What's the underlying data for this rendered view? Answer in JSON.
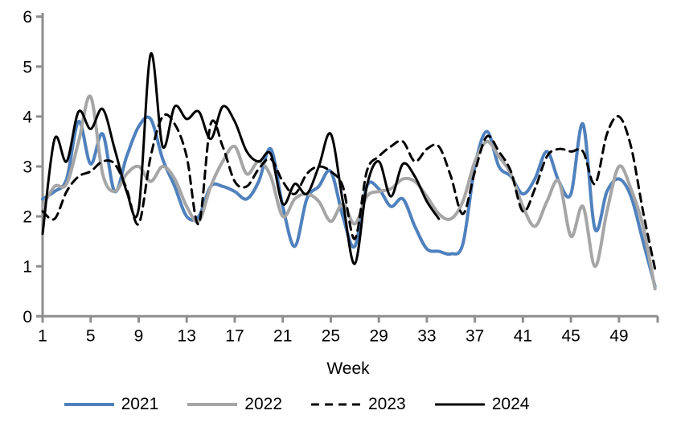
{
  "axis_color": "#8e8e8e",
  "text_color": "#000000",
  "background_color": "#ffffff",
  "chart_data": {
    "type": "line",
    "title": "",
    "xlabel": "Week",
    "ylabel": "",
    "xlim": [
      1,
      52
    ],
    "ylim": [
      0,
      6
    ],
    "grid": false,
    "legend_position": "bottom",
    "x_ticks": [
      1,
      5,
      9,
      13,
      17,
      21,
      25,
      29,
      33,
      37,
      41,
      45,
      49
    ],
    "y_ticks": [
      0,
      1,
      2,
      3,
      4,
      5,
      6
    ],
    "x_start_week": 1,
    "series": [
      {
        "name": "2021",
        "color": "#4f81bd",
        "style": "solid",
        "width": 4,
        "values": [
          2.35,
          2.5,
          2.75,
          3.9,
          3.05,
          3.65,
          2.5,
          3.2,
          3.8,
          3.95,
          3.15,
          2.6,
          2.0,
          2.0,
          2.6,
          2.6,
          2.5,
          2.35,
          2.7,
          3.35,
          2.2,
          1.4,
          2.35,
          2.6,
          2.9,
          2.0,
          1.4,
          2.6,
          2.55,
          2.2,
          2.35,
          1.8,
          1.35,
          1.3,
          1.25,
          1.45,
          3.0,
          3.7,
          3.0,
          2.8,
          2.45,
          2.75,
          3.3,
          2.7,
          2.45,
          3.85,
          1.75,
          2.5,
          2.75,
          2.4,
          1.5,
          0.6
        ]
      },
      {
        "name": "2022",
        "color": "#a6a6a6",
        "style": "solid",
        "width": 4,
        "values": [
          2.2,
          2.6,
          2.65,
          3.5,
          4.4,
          2.85,
          2.5,
          2.85,
          3.0,
          2.7,
          3.0,
          2.75,
          2.2,
          1.9,
          2.6,
          3.1,
          3.4,
          2.85,
          3.1,
          2.8,
          2.0,
          2.35,
          2.45,
          2.3,
          1.9,
          2.25,
          1.85,
          2.4,
          2.5,
          2.55,
          2.75,
          2.7,
          2.4,
          2.05,
          1.95,
          2.3,
          3.1,
          3.5,
          3.2,
          2.85,
          2.2,
          1.8,
          2.3,
          2.7,
          1.6,
          2.2,
          1.0,
          2.1,
          3.0,
          2.55,
          1.8,
          0.55
        ]
      },
      {
        "name": "2023",
        "color": "#000000",
        "style": "dashed",
        "width": 3,
        "values": [
          2.1,
          1.95,
          2.5,
          2.8,
          2.9,
          3.1,
          3.05,
          2.55,
          1.85,
          3.2,
          4.0,
          3.85,
          3.2,
          1.85,
          3.85,
          3.4,
          2.7,
          2.6,
          2.95,
          3.15,
          2.7,
          2.45,
          2.85,
          3.0,
          2.9,
          2.6,
          1.55,
          2.9,
          3.2,
          3.4,
          3.5,
          3.1,
          3.35,
          3.4,
          2.8,
          2.05,
          2.9,
          3.6,
          3.3,
          2.9,
          2.1,
          2.55,
          3.2,
          3.35,
          3.3,
          3.3,
          2.65,
          3.65,
          4.0,
          3.4,
          2.1,
          0.95
        ]
      },
      {
        "name": "2024",
        "color": "#000000",
        "style": "solid",
        "width": 3,
        "values": [
          1.65,
          3.55,
          3.1,
          4.1,
          3.75,
          4.15,
          3.35,
          2.5,
          2.15,
          5.25,
          3.4,
          4.2,
          3.95,
          4.1,
          3.55,
          4.2,
          3.9,
          3.3,
          3.1,
          3.25,
          2.25,
          2.65,
          2.45,
          3.0,
          3.65,
          2.3,
          1.05,
          2.6,
          3.1,
          2.4,
          3.05,
          2.8,
          2.3,
          1.95
        ]
      }
    ]
  }
}
